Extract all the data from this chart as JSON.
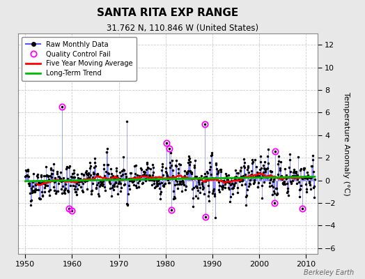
{
  "title": "SANTA RITA EXP RANGE",
  "subtitle": "31.762 N, 110.846 W (United States)",
  "watermark": "Berkeley Earth",
  "ylabel_right": "Temperature Anomaly (°C)",
  "xlim": [
    1948.5,
    2012.5
  ],
  "ylim": [
    -6.5,
    13.0
  ],
  "yticks": [
    -6,
    -4,
    -2,
    0,
    2,
    4,
    6,
    8,
    10,
    12
  ],
  "xticks": [
    1950,
    1960,
    1970,
    1980,
    1990,
    2000,
    2010
  ],
  "bg_color": "#e8e8e8",
  "plot_bg_color": "#ffffff",
  "raw_line_color": "#5555ff",
  "raw_dot_color": "#000000",
  "qc_fail_color": "#ff00ff",
  "moving_avg_color": "#ff0000",
  "trend_color": "#00bb00",
  "seed": 42,
  "years_start": 1950,
  "years_end": 2011
}
